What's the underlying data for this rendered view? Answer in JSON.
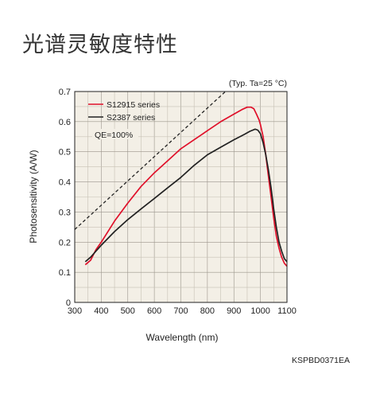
{
  "page": {
    "title": "光谱灵敏度特性",
    "doc_code": "KSPBD0371EA"
  },
  "chart_data": {
    "type": "line",
    "note": "(Typ. Ta=25 °C)",
    "xlabel": "Wavelength (nm)",
    "ylabel": "Photosensitivity (A/W)",
    "xlim": [
      300,
      1100
    ],
    "ylim": [
      0,
      0.7
    ],
    "xticks": [
      300,
      400,
      500,
      600,
      700,
      800,
      900,
      1000,
      1100
    ],
    "yticks": [
      0,
      0.1,
      0.2,
      0.3,
      0.4,
      0.5,
      0.6,
      0.7
    ],
    "grid": true,
    "legend_position": "top-left",
    "series": [
      {
        "name": "S12915 series",
        "color": "#e0102a",
        "style": "solid",
        "x": [
          340,
          360,
          380,
          400,
          450,
          500,
          550,
          600,
          650,
          700,
          750,
          800,
          850,
          900,
          930,
          950,
          965,
          975,
          985,
          995,
          1000,
          1010,
          1020,
          1030,
          1040,
          1050,
          1060,
          1070,
          1080,
          1090,
          1100
        ],
        "y": [
          0.125,
          0.14,
          0.175,
          0.2,
          0.27,
          0.33,
          0.385,
          0.43,
          0.47,
          0.51,
          0.54,
          0.57,
          0.6,
          0.625,
          0.64,
          0.648,
          0.648,
          0.643,
          0.625,
          0.605,
          0.59,
          0.55,
          0.49,
          0.42,
          0.35,
          0.28,
          0.22,
          0.18,
          0.15,
          0.13,
          0.12
        ]
      },
      {
        "name": "S2387 series",
        "color": "#222222",
        "style": "solid",
        "x": [
          340,
          360,
          380,
          400,
          450,
          500,
          550,
          600,
          650,
          700,
          750,
          800,
          850,
          900,
          940,
          960,
          980,
          990,
          1000,
          1010,
          1020,
          1030,
          1040,
          1050,
          1060,
          1070,
          1080,
          1090,
          1100
        ],
        "y": [
          0.135,
          0.15,
          0.17,
          0.19,
          0.235,
          0.275,
          0.31,
          0.345,
          0.38,
          0.415,
          0.455,
          0.49,
          0.515,
          0.54,
          0.558,
          0.568,
          0.575,
          0.572,
          0.56,
          0.53,
          0.49,
          0.44,
          0.38,
          0.31,
          0.25,
          0.2,
          0.17,
          0.145,
          0.135
        ]
      },
      {
        "name": "QE=100%",
        "color": "#222222",
        "style": "dashed",
        "x": [
          300,
          1100
        ],
        "y": [
          0.242,
          0.887
        ]
      }
    ]
  }
}
